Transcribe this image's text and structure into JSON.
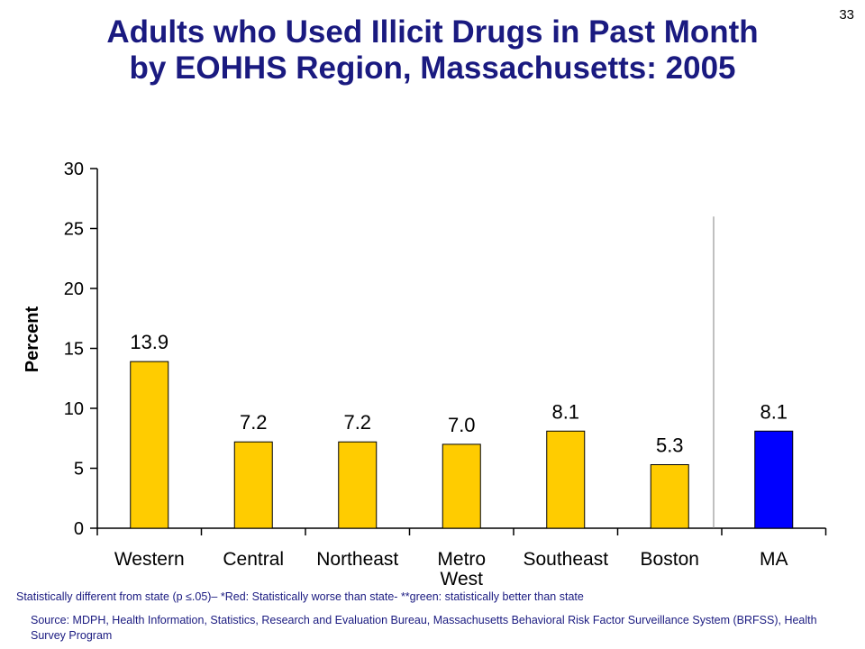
{
  "page_number": "33",
  "title_line1": "Adults who Used Illicit Drugs in Past Month",
  "title_line2": "by EOHHS Region, Massachusetts: 2005",
  "footnote": "Statistically different from state (p ≤.05)– *Red: Statistically worse than state- **green: statistically better than state",
  "source": "Source: MDPH, Health Information, Statistics, Research and Evaluation Bureau, Massachusetts Behavioral Risk Factor Surveillance System (BRFSS), Health Survey Program",
  "chart_data": {
    "type": "bar",
    "ylabel": "Percent",
    "ylim": [
      0,
      30
    ],
    "yticks": [
      0,
      5,
      10,
      15,
      20,
      25,
      30
    ],
    "categories": [
      [
        "Western"
      ],
      [
        "Central"
      ],
      [
        "Northeast"
      ],
      [
        "Metro",
        "West"
      ],
      [
        "Southeast"
      ],
      [
        "Boston"
      ],
      [
        "MA"
      ]
    ],
    "values": [
      13.9,
      7.2,
      7.2,
      7.0,
      8.1,
      5.3,
      8.1
    ],
    "data_labels": [
      "13.9",
      "7.2",
      "7.2",
      "7.0",
      "8.1",
      "5.3",
      "8.1"
    ],
    "colors": [
      "#ffcc00",
      "#ffcc00",
      "#ffcc00",
      "#ffcc00",
      "#ffcc00",
      "#ffcc00",
      "#0000ff"
    ],
    "divider_after_index": 5
  }
}
